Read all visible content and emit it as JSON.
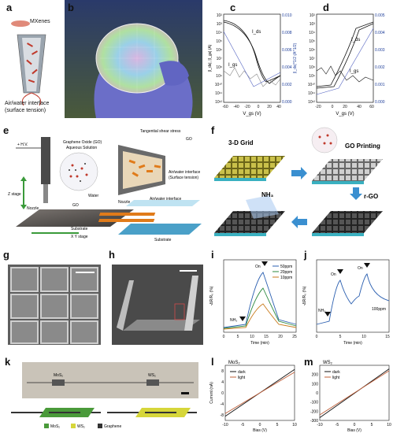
{
  "panel_labels": {
    "a": "a",
    "b": "b",
    "c": "c",
    "d": "d",
    "e": "e",
    "f": "f",
    "g": "g",
    "h": "h",
    "i": "i",
    "j": "j",
    "k": "k",
    "l": "l",
    "m": "m"
  },
  "panel_a": {
    "title": "MXenes",
    "caption_line1": "Air/water interface",
    "caption_line2": "(surface tension)"
  },
  "panel_c": {
    "ylabel_left": "|I_ds|, |I_gs| (A)",
    "ylabel_right": "|I_ds|^1/2 (A^1/2)",
    "xlabel": "V_gs (V)",
    "label_on": "I_ds",
    "label_off": "I_gs",
    "yticks_left": [
      "10²",
      "10³",
      "10⁴",
      "10⁵",
      "10⁶",
      "10⁷",
      "10⁸",
      "10⁹",
      "10¹⁰",
      "10¹¹",
      "10¹²"
    ],
    "yticks_right": [
      "0.010",
      "0.008",
      "0.006",
      "0.004",
      "0.002",
      "0.000"
    ],
    "xticks": [
      "-60",
      "-40",
      "-20",
      "0",
      "20",
      "40"
    ]
  },
  "panel_d": {
    "label_on": "I_ds",
    "label_off": "I_gs",
    "yticks_left": [
      "10²",
      "10³",
      "10⁴",
      "10⁵",
      "10⁶",
      "10⁷",
      "10⁸",
      "10⁹",
      "10¹⁰",
      "10¹¹",
      "10¹²"
    ],
    "yticks_right": [
      "0.005",
      "0.004",
      "0.003",
      "0.002",
      "0.001",
      "0.000"
    ],
    "xticks": [
      "-20",
      "0",
      "20",
      "40",
      "60"
    ],
    "xlabel": "V_gs (V)"
  },
  "panel_e": {
    "hv": "+ H.V.",
    "z_stage": "Z stage",
    "nozzle": "Nozzle",
    "go": "GO",
    "water": "Water",
    "substrate": "Substrate",
    "xy_stage": "X Y stage",
    "solution_line1": "Graphene Oxide (GO)",
    "solution_line2": "Aqueous Solution",
    "shear": "Tangential shear stress",
    "interface_line1": "Air/water interface",
    "interface_line2": "(Surface tension)",
    "air_water": "Air/water interface",
    "go2": "GO",
    "substrate2": "Substrate",
    "nozzle2": "Nozzle"
  },
  "panel_f": {
    "grid": "3-D Grid",
    "go_printing": "GO Printing",
    "rgo": "r-GO",
    "nh3": "NH₃"
  },
  "panel_i": {
    "ylabel": "-ΔR/R₀ (%)",
    "xlabel": "Time (min)",
    "on": "On",
    "off": "NH₃",
    "legend": [
      "50ppm",
      "20ppm",
      "10ppm"
    ],
    "xticks": [
      "0",
      "5",
      "10",
      "15",
      "20",
      "25"
    ]
  },
  "panel_j": {
    "ylabel": "-ΔR/R₀ (%)",
    "xlabel": "Time (min)",
    "on1": "On",
    "on2": "On",
    "off": "NH₃",
    "conc": "100ppm",
    "xticks": [
      "0",
      "5",
      "10",
      "15"
    ]
  },
  "panel_k": {
    "mos2": "MoS₂",
    "ws2": "WS₂",
    "legend": [
      "MoS₂",
      "WS₂",
      "Graphene"
    ]
  },
  "panel_l": {
    "title": "MoS₂",
    "ylabel": "Current (nA)",
    "xlabel": "Bias (V)",
    "dark": "dark",
    "light": "light",
    "xticks": [
      "-10",
      "-5",
      "0",
      "5",
      "10"
    ],
    "yticks": [
      "8",
      "4",
      "0",
      "-4",
      "-8"
    ]
  },
  "panel_m": {
    "title": "WS₂",
    "xlabel": "Bias (V)",
    "dark": "dark",
    "light": "light",
    "xticks": [
      "-10",
      "-5",
      "0",
      "5",
      "10"
    ],
    "yticks": [
      "200",
      "100",
      "0",
      "-100",
      "-200",
      "-300"
    ]
  },
  "colors": {
    "dark": "#111111",
    "light": "#c0603a",
    "c1": "#2b5fb0",
    "c2": "#2b8a3e",
    "c3": "#c97a1b"
  },
  "chart_data": [
    {
      "type": "line",
      "title": "MoS₂",
      "xlabel": "Bias (V)",
      "ylabel": "Current (nA)",
      "xlim": [
        -10,
        10
      ],
      "ylim": [
        -10,
        10
      ],
      "series": [
        {
          "name": "dark",
          "x": [
            -10,
            10
          ],
          "values": [
            -8.5,
            8.5
          ]
        },
        {
          "name": "light",
          "x": [
            -10,
            10
          ],
          "values": [
            -7.5,
            7.5
          ]
        }
      ]
    },
    {
      "type": "line",
      "title": "WS₂",
      "xlabel": "Bias (V)",
      "ylabel": "",
      "xlim": [
        -10,
        10
      ],
      "ylim": [
        -300,
        300
      ],
      "series": [
        {
          "name": "dark",
          "x": [
            -10,
            10
          ],
          "values": [
            -270,
            260
          ]
        },
        {
          "name": "light",
          "x": [
            -10,
            10
          ],
          "values": [
            -240,
            240
          ]
        }
      ]
    }
  ]
}
